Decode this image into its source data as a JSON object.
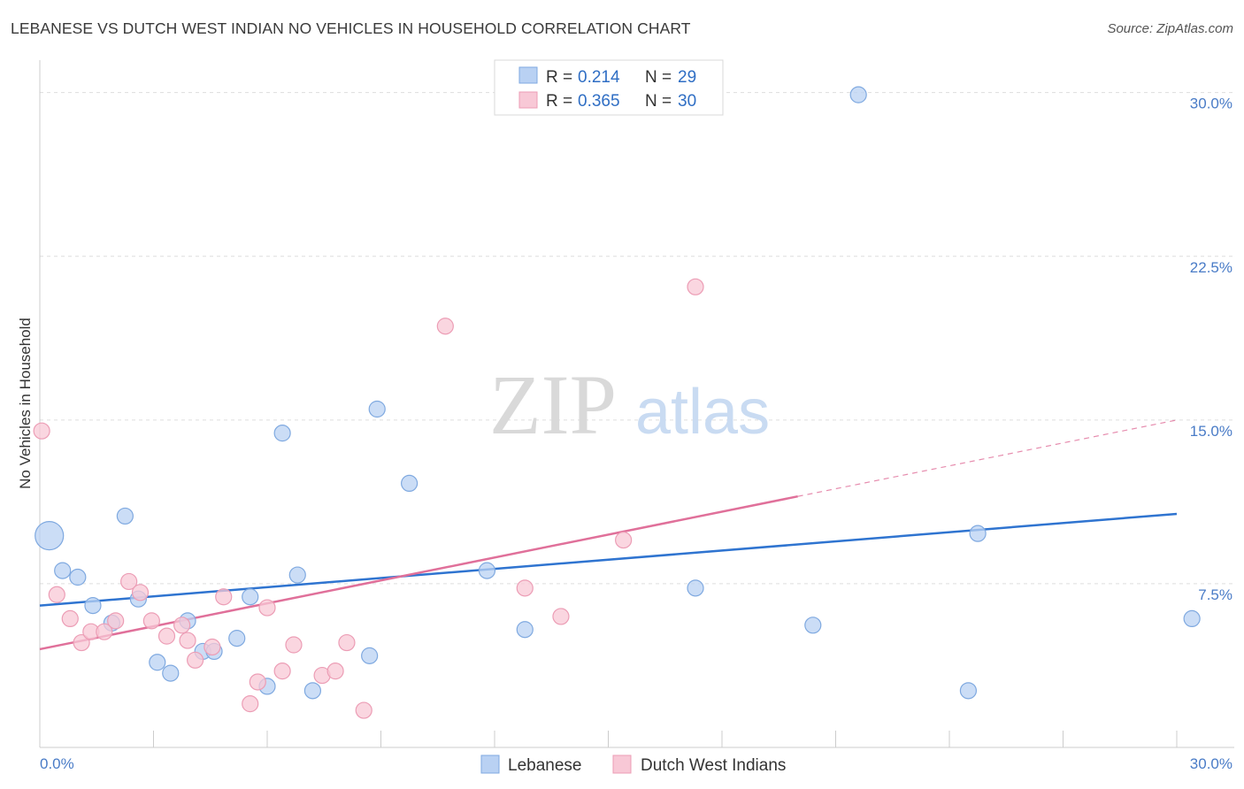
{
  "header": {
    "title": "LEBANESE VS DUTCH WEST INDIAN NO VEHICLES IN HOUSEHOLD CORRELATION CHART",
    "source": "Source: ZipAtlas.com"
  },
  "watermark": {
    "zip": "ZIP",
    "atlas": "atlas"
  },
  "colors": {
    "lebanese_fill": "#b9d1f3",
    "lebanese_stroke": "#7fa9e0",
    "lebanese_line": "#2f74d0",
    "dwi_fill": "#f8c8d6",
    "dwi_stroke": "#ec9db5",
    "dwi_line": "#e0709a",
    "tick_text": "#4a7cc7"
  },
  "legend": {
    "rows": [
      {
        "r_label": "R =",
        "r_value": "0.214",
        "n_label": "N =",
        "n_value": "29"
      },
      {
        "r_label": "R =",
        "r_value": "0.365",
        "n_label": "N =",
        "n_value": "30"
      }
    ]
  },
  "bottom_legend": [
    "Lebanese",
    "Dutch West Indians"
  ],
  "chart_data": {
    "type": "scatter",
    "title": "LEBANESE VS DUTCH WEST INDIAN NO VEHICLES IN HOUSEHOLD CORRELATION CHART",
    "xlabel": "",
    "ylabel": "No Vehicles in Household",
    "xlim": [
      0,
      30
    ],
    "ylim": [
      0,
      31
    ],
    "x_tick_labels": [
      "0.0%",
      "30.0%"
    ],
    "y_ticks": [
      7.5,
      15.0,
      22.5,
      30.0
    ],
    "y_tick_labels": [
      "7.5%",
      "15.0%",
      "22.5%",
      "30.0%"
    ],
    "grid": true,
    "legend_placement": "top-center",
    "series": [
      {
        "name": "Lebanese",
        "r": 0.214,
        "n": 29,
        "trend": {
          "x": [
            0,
            30
          ],
          "y": [
            6.5,
            10.7
          ]
        },
        "points": [
          {
            "x": 0.25,
            "y": 9.7,
            "size": 3
          },
          {
            "x": 0.6,
            "y": 8.1,
            "size": 1
          },
          {
            "x": 1.0,
            "y": 7.8,
            "size": 1
          },
          {
            "x": 1.4,
            "y": 6.5,
            "size": 1
          },
          {
            "x": 1.9,
            "y": 5.7,
            "size": 1
          },
          {
            "x": 2.25,
            "y": 10.6,
            "size": 1
          },
          {
            "x": 2.6,
            "y": 6.8,
            "size": 1
          },
          {
            "x": 3.1,
            "y": 3.9,
            "size": 1
          },
          {
            "x": 3.45,
            "y": 3.4,
            "size": 1
          },
          {
            "x": 3.9,
            "y": 5.8,
            "size": 1
          },
          {
            "x": 4.3,
            "y": 4.4,
            "size": 1
          },
          {
            "x": 4.6,
            "y": 4.4,
            "size": 1
          },
          {
            "x": 5.2,
            "y": 5.0,
            "size": 1
          },
          {
            "x": 5.55,
            "y": 6.9,
            "size": 1
          },
          {
            "x": 6.0,
            "y": 2.8,
            "size": 1
          },
          {
            "x": 6.4,
            "y": 14.4,
            "size": 1
          },
          {
            "x": 6.8,
            "y": 7.9,
            "size": 1
          },
          {
            "x": 7.2,
            "y": 2.6,
            "size": 1
          },
          {
            "x": 8.7,
            "y": 4.2,
            "size": 1
          },
          {
            "x": 8.9,
            "y": 15.5,
            "size": 1
          },
          {
            "x": 9.75,
            "y": 12.1,
            "size": 1
          },
          {
            "x": 11.8,
            "y": 8.1,
            "size": 1
          },
          {
            "x": 12.8,
            "y": 5.4,
            "size": 1
          },
          {
            "x": 17.3,
            "y": 7.3,
            "size": 1
          },
          {
            "x": 20.4,
            "y": 5.6,
            "size": 1
          },
          {
            "x": 21.6,
            "y": 29.9,
            "size": 1
          },
          {
            "x": 24.5,
            "y": 2.6,
            "size": 1
          },
          {
            "x": 24.75,
            "y": 9.8,
            "size": 1
          },
          {
            "x": 30.4,
            "y": 5.9,
            "size": 1
          }
        ]
      },
      {
        "name": "Dutch West Indians",
        "r": 0.365,
        "n": 30,
        "trend": {
          "x": [
            0,
            20
          ],
          "y": [
            4.5,
            11.5
          ]
        },
        "trend_extension": {
          "x": [
            20,
            30
          ],
          "y": [
            11.5,
            15.0
          ]
        },
        "points": [
          {
            "x": 0.05,
            "y": 14.5,
            "size": 1
          },
          {
            "x": 0.45,
            "y": 7.0,
            "size": 1
          },
          {
            "x": 0.8,
            "y": 5.9,
            "size": 1
          },
          {
            "x": 1.1,
            "y": 4.8,
            "size": 1
          },
          {
            "x": 1.35,
            "y": 5.3,
            "size": 1
          },
          {
            "x": 1.7,
            "y": 5.3,
            "size": 1
          },
          {
            "x": 2.0,
            "y": 5.8,
            "size": 1
          },
          {
            "x": 2.35,
            "y": 7.6,
            "size": 1
          },
          {
            "x": 2.65,
            "y": 7.1,
            "size": 1
          },
          {
            "x": 2.95,
            "y": 5.8,
            "size": 1
          },
          {
            "x": 3.35,
            "y": 5.1,
            "size": 1
          },
          {
            "x": 3.75,
            "y": 5.6,
            "size": 1
          },
          {
            "x": 3.9,
            "y": 4.9,
            "size": 1
          },
          {
            "x": 4.1,
            "y": 4.0,
            "size": 1
          },
          {
            "x": 4.55,
            "y": 4.6,
            "size": 1
          },
          {
            "x": 4.85,
            "y": 6.9,
            "size": 1
          },
          {
            "x": 5.55,
            "y": 2.0,
            "size": 1
          },
          {
            "x": 5.75,
            "y": 3.0,
            "size": 1
          },
          {
            "x": 6.0,
            "y": 6.4,
            "size": 1
          },
          {
            "x": 6.4,
            "y": 3.5,
            "size": 1
          },
          {
            "x": 6.7,
            "y": 4.7,
            "size": 1
          },
          {
            "x": 7.45,
            "y": 3.3,
            "size": 1
          },
          {
            "x": 7.8,
            "y": 3.5,
            "size": 1
          },
          {
            "x": 8.1,
            "y": 4.8,
            "size": 1
          },
          {
            "x": 8.55,
            "y": 1.7,
            "size": 1
          },
          {
            "x": 10.7,
            "y": 19.3,
            "size": 1
          },
          {
            "x": 12.8,
            "y": 7.3,
            "size": 1
          },
          {
            "x": 13.75,
            "y": 6.0,
            "size": 1
          },
          {
            "x": 15.4,
            "y": 9.5,
            "size": 1
          },
          {
            "x": 17.3,
            "y": 21.1,
            "size": 1
          }
        ]
      }
    ]
  }
}
